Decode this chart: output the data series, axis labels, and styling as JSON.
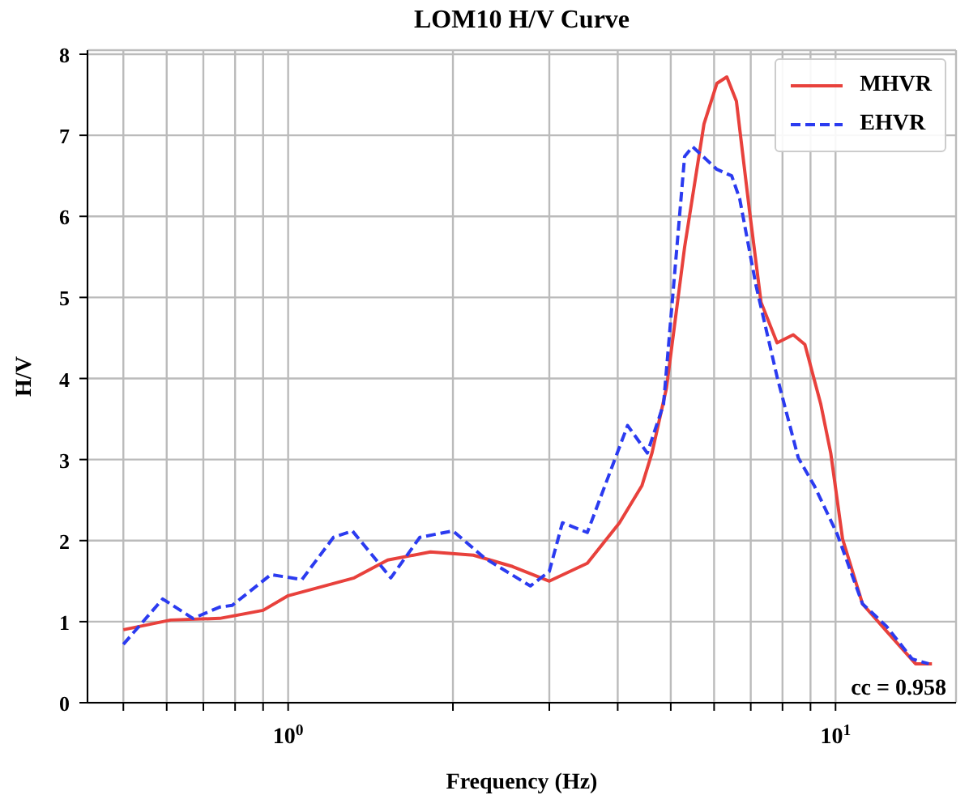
{
  "chart_data": {
    "type": "line",
    "title": "LOM10 H/V Curve",
    "xlabel": "Frequency (Hz)",
    "ylabel": "H/V",
    "log": "x",
    "grid": true,
    "legend": "top right",
    "xlim": [
      0.43,
      16.6
    ],
    "ylim": [
      0,
      8.05
    ],
    "xticks": [
      {
        "value": 0.5,
        "label": null
      },
      {
        "value": 0.6,
        "label": null
      },
      {
        "value": 0.7,
        "label": null
      },
      {
        "value": 0.8,
        "label": null
      },
      {
        "value": 0.9,
        "label": null
      },
      {
        "value": 1,
        "label": "10$^{0}$"
      },
      {
        "value": 2,
        "label": null
      },
      {
        "value": 3,
        "label": null
      },
      {
        "value": 4,
        "label": null
      },
      {
        "value": 5,
        "label": null
      },
      {
        "value": 6,
        "label": null
      },
      {
        "value": 7,
        "label": null
      },
      {
        "value": 8,
        "label": null
      },
      {
        "value": 9,
        "label": null
      },
      {
        "value": 10,
        "label": "10$^{1}$"
      }
    ],
    "yticks": [
      0,
      1,
      2,
      3,
      4,
      5,
      6,
      7,
      8
    ],
    "annotations": [
      "cc = 0.958"
    ],
    "series": [
      {
        "name": "MHVR",
        "color": "#e8413c",
        "line_style": "solid",
        "x": [
          0.5,
          0.61,
          0.75,
          0.9,
          1.0,
          1.32,
          1.52,
          1.82,
          2.18,
          2.57,
          3.0,
          3.52,
          4.03,
          4.43,
          4.62,
          4.91,
          5.3,
          5.75,
          6.07,
          6.33,
          6.59,
          6.96,
          7.31,
          7.82,
          8.37,
          8.79,
          9.4,
          9.8,
          10.3,
          11.2,
          12.4,
          14.0,
          15.0
        ],
        "values": [
          0.9,
          1.02,
          1.04,
          1.14,
          1.32,
          1.54,
          1.76,
          1.86,
          1.82,
          1.68,
          1.5,
          1.72,
          2.22,
          2.68,
          3.08,
          3.88,
          5.62,
          7.14,
          7.64,
          7.72,
          7.42,
          6.08,
          4.94,
          4.44,
          4.54,
          4.42,
          3.68,
          3.08,
          2.02,
          1.22,
          0.88,
          0.48,
          0.48
        ]
      },
      {
        "name": "EHVR",
        "color": "#2b3bf0",
        "line_style": "dashed",
        "x": [
          0.5,
          0.59,
          0.67,
          0.75,
          0.79,
          0.93,
          1.06,
          1.21,
          1.31,
          1.54,
          1.74,
          2.0,
          2.29,
          2.77,
          3.0,
          3.17,
          3.52,
          4.17,
          4.53,
          4.85,
          5.3,
          5.48,
          6.07,
          6.46,
          6.68,
          7.16,
          7.82,
          8.55,
          9.14,
          10.07,
          11.2,
          12.4,
          13.8,
          14.8
        ],
        "values": [
          0.72,
          1.28,
          1.04,
          1.18,
          1.2,
          1.58,
          1.52,
          2.04,
          2.12,
          1.54,
          2.04,
          2.12,
          1.78,
          1.44,
          1.62,
          2.22,
          2.1,
          3.42,
          3.08,
          3.68,
          6.74,
          6.86,
          6.58,
          6.5,
          6.22,
          5.14,
          4.02,
          3.02,
          2.68,
          2.08,
          1.22,
          0.94,
          0.54,
          0.48
        ]
      }
    ]
  }
}
